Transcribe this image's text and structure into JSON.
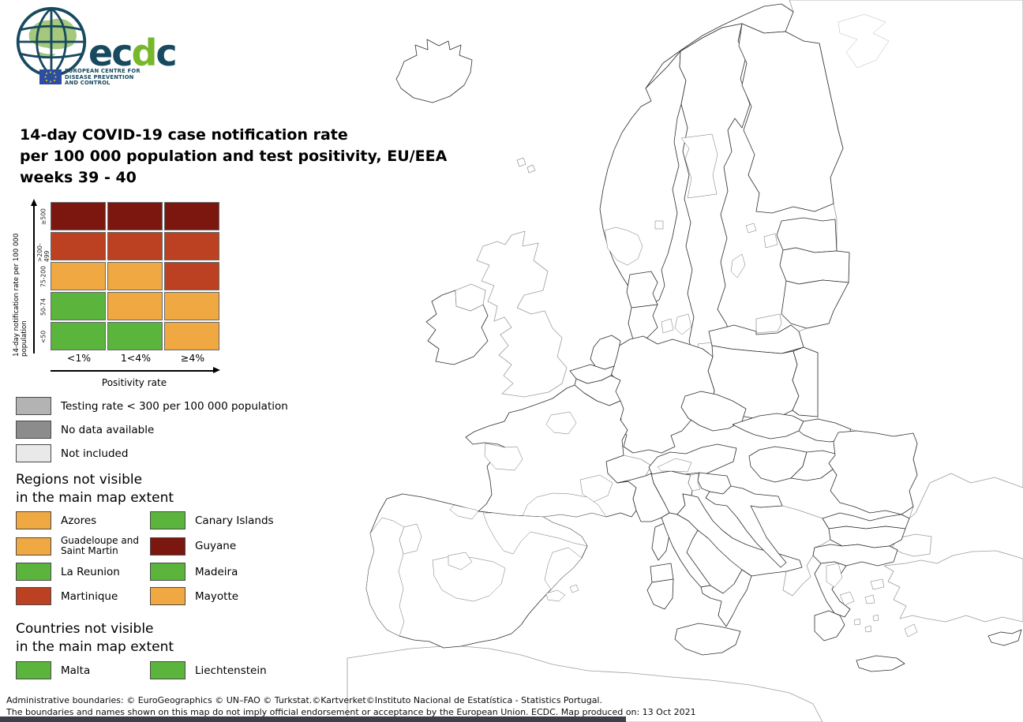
{
  "logo": {
    "wordmark": "ecdc",
    "caption_lines": [
      "EUROPEAN CENTRE FOR",
      "DISEASE PREVENTION",
      "AND CONTROL"
    ],
    "colors": {
      "navy": "#17495F",
      "green": "#77B72C",
      "flag_blue": "#2B4EA2",
      "flag_stars": "#F7D117",
      "globe_land": "#A5C87D"
    }
  },
  "title": {
    "lines": [
      "14-day COVID-19 case notification rate",
      "per 100 000 population and test positivity, EU/EEA",
      "weeks 39 - 40"
    ]
  },
  "palette": {
    "green": "#5BB43C",
    "orange": "#F0A843",
    "red": "#BC4123",
    "darkred": "#7B170F",
    "testing_gray": "#B3B3B3",
    "nodata_gray": "#8C8C8C",
    "notincluded_gray": "#E9E9E9",
    "sea": "#FFFFFF"
  },
  "matrix_legend": {
    "y_axis_label": "14-day notification rate per 100 000 population",
    "x_axis_label": "Positivity rate",
    "row_labels": [
      "≥500",
      ">200-499",
      "75-200",
      "50-74",
      "<50"
    ],
    "col_labels": [
      "<1%",
      "1<4%",
      "≥4%"
    ],
    "cell_colors": [
      [
        "darkred",
        "darkred",
        "darkred"
      ],
      [
        "red",
        "red",
        "red"
      ],
      [
        "orange",
        "orange",
        "red"
      ],
      [
        "green",
        "orange",
        "orange"
      ],
      [
        "green",
        "green",
        "orange"
      ]
    ]
  },
  "status_legend": [
    {
      "key": "testing_gray",
      "label": "Testing rate < 300 per 100 000 population"
    },
    {
      "key": "nodata_gray",
      "label": "No data available"
    },
    {
      "key": "notincluded_gray",
      "label": "Not included"
    }
  ],
  "regions_not_visible": {
    "heading_lines": [
      "Regions not visible",
      "in the main map extent"
    ],
    "items": [
      {
        "label": "Azores",
        "color": "orange"
      },
      {
        "label": "Canary Islands",
        "color": "green"
      },
      {
        "label": "Guadeloupe and Saint Martin",
        "color": "orange",
        "small": true
      },
      {
        "label": "Guyane",
        "color": "darkred"
      },
      {
        "label": "La Reunion",
        "color": "green"
      },
      {
        "label": "Madeira",
        "color": "green"
      },
      {
        "label": "Martinique",
        "color": "red"
      },
      {
        "label": "Mayotte",
        "color": "orange"
      }
    ]
  },
  "countries_not_visible": {
    "heading_lines": [
      "Countries not visible",
      "in the main map extent"
    ],
    "items": [
      {
        "label": "Malta",
        "color": "green"
      },
      {
        "label": "Liechtenstein",
        "color": "green"
      }
    ]
  },
  "footer": {
    "line1": "Administrative boundaries: © EuroGeographics © UN–FAO © Turkstat.©Kartverket©Instituto Nacional de Estatística - Statistics Portugal.",
    "line2": "The boundaries and names shown on this map do not imply official endorsement or acceptance by the European Union. ECDC. Map produced on: 13 Oct 2021"
  },
  "map": {
    "regions": {
      "russia_east": "notincluded_gray",
      "africa": "notincluded_gray",
      "turkey_thrace": "notincluded_gray",
      "turkey_anatolia": "notincluded_gray",
      "great_britain": "notincluded_gray",
      "northern_ireland": "notincluded_gray",
      "switzerland": "notincluded_gray",
      "west_balkans": "notincluded_gray",
      "kaliningrad": "notincluded_gray",
      "faroe_1": "notincluded_gray",
      "faroe_2": "notincluded_gray",
      "iceland": "orange",
      "ireland": "red",
      "norway_north": "red",
      "norway_main": "orange",
      "norway_southwest": "green",
      "norway_oslo": "red",
      "sweden_main": "orange",
      "sweden_mid": "green",
      "sweden_south": "green",
      "gotland": "orange",
      "aland": "green",
      "finland": "red",
      "estonia": "darkred",
      "saaremaa": "darkred",
      "latvia": "darkred",
      "lithuania": "darkred",
      "denmark_north": "green",
      "denmark_south": "orange",
      "funen": "orange",
      "zealand": "orange",
      "poland_north": "orange",
      "poland_main": "green",
      "poland_east": "red",
      "germany": "red",
      "netherlands": "orange",
      "belgium_flanders": "orange",
      "belgium_wallonia": "red",
      "france_main": "green",
      "france_ile_de_france": "orange",
      "france_pays_de_la_loire": "orange",
      "france_rhone_alpes": "orange",
      "france_south": "orange",
      "corsica": "orange",
      "sardinia_north": "orange",
      "sardinia_south": "green",
      "spain_main": "green",
      "spain_center": "red",
      "spain_madrid": "orange",
      "spain_northeast": "orange",
      "spain_valencia": "orange",
      "spain_basque": "orange",
      "balearic_1": "orange",
      "balearic_2": "orange",
      "portugal_coast": "orange",
      "portugal_northeast": "green",
      "italy_northwest": "green",
      "italy_north": "orange",
      "italy_friuli": "green",
      "italy_west": "orange",
      "italy_east": "green",
      "italy_south": "orange",
      "sicily": "orange",
      "austria_main": "red",
      "austria_south": "orange",
      "czechia": "orange",
      "slovakia_west": "darkred",
      "slovakia_east": "red",
      "hungary_west": "orange",
      "hungary_east": "red",
      "slovenia": "darkred",
      "croatia": "red",
      "romania": "darkred",
      "bulgaria_north": "darkred",
      "bulgaria_south": "red",
      "greece_north": "red",
      "greece_main": "red",
      "greece_north_center": "darkred",
      "greece_attica": "darkred",
      "greece_peloponnese": "orange",
      "lesbos": "green",
      "chios": "green",
      "rhodes": "orange",
      "crete": "orange",
      "cyclades_1": "red",
      "cyclades_2": "orange",
      "cyclades_3": "darkred",
      "cyprus": "orange"
    }
  }
}
